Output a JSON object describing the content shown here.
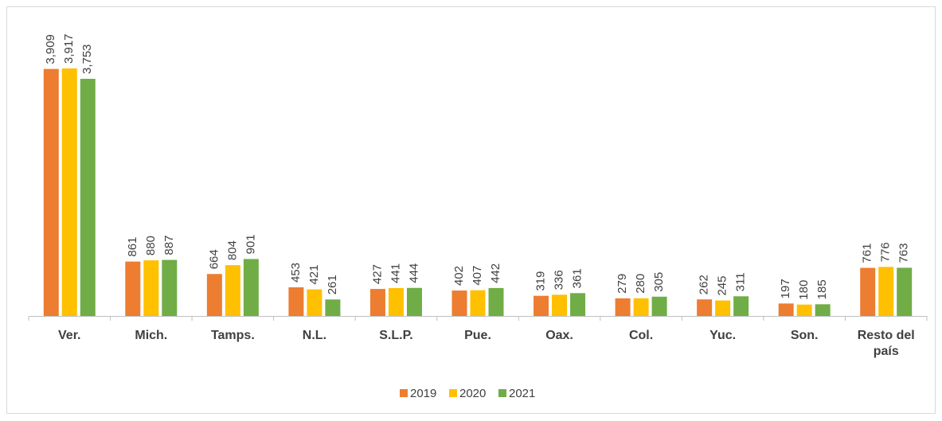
{
  "chart_data": {
    "type": "bar",
    "categories": [
      "Ver.",
      "Mich.",
      "Tamps.",
      "N.L.",
      "S.L.P.",
      "Pue.",
      "Oax.",
      "Col.",
      "Yuc.",
      "Son.",
      "Resto del país"
    ],
    "series": [
      {
        "name": "2019",
        "color": "#ED7D31",
        "values": [
          3909,
          861,
          664,
          453,
          427,
          402,
          319,
          279,
          262,
          197,
          761
        ],
        "value_labels": [
          "3,909",
          "861",
          "664",
          "453",
          "427",
          "402",
          "319",
          "279",
          "262",
          "197",
          "761"
        ]
      },
      {
        "name": "2020",
        "color": "#FFC000",
        "values": [
          3917,
          880,
          804,
          421,
          441,
          407,
          336,
          280,
          245,
          180,
          776
        ],
        "value_labels": [
          "3,917",
          "880",
          "804",
          "421",
          "441",
          "407",
          "336",
          "280",
          "245",
          "180",
          "776"
        ]
      },
      {
        "name": "2021",
        "color": "#70AD47",
        "values": [
          3753,
          887,
          901,
          261,
          444,
          442,
          361,
          305,
          311,
          185,
          763
        ],
        "value_labels": [
          "3,753",
          "887",
          "901",
          "261",
          "444",
          "442",
          "361",
          "305",
          "311",
          "185",
          "763"
        ]
      }
    ],
    "legend": "bottom"
  }
}
